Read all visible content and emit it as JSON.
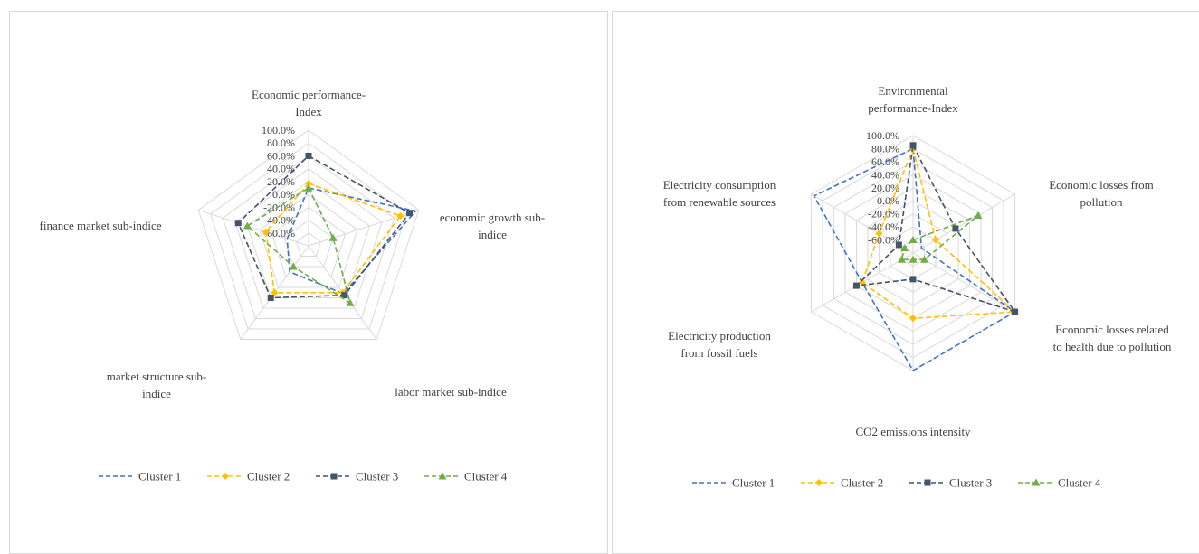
{
  "colors": {
    "cluster1": "#4472C4",
    "cluster2": "#FFC000",
    "cluster3": "#44546A",
    "cluster4": "#70AD47",
    "grid": "#D9D9D9"
  },
  "chart_data": [
    {
      "type": "radar",
      "title": "",
      "axes": [
        "Economic performance-Index",
        "economic growth sub-indice",
        "labor market sub-indice",
        "market structure sub-indice",
        "finance market sub-indice"
      ],
      "tick_labels": [
        "100.0%",
        "80.0%",
        "60.0%",
        "40.0%",
        "20.0%",
        "0.0%",
        "-20.0%",
        "-40.0%",
        "-60.0%"
      ],
      "range": [
        -80,
        100
      ],
      "unit": "%",
      "grid": true,
      "legend_position": "bottom",
      "series": [
        {
          "name": "Cluster 1",
          "marker": "none",
          "values": [
            10,
            95,
            12,
            -30,
            -45
          ]
        },
        {
          "name": "Cluster 2",
          "marker": "diamond",
          "values": [
            17,
            70,
            10,
            10,
            -10
          ]
        },
        {
          "name": "Cluster 3",
          "marker": "square",
          "values": [
            60,
            85,
            15,
            20,
            35
          ]
        },
        {
          "name": "Cluster 4",
          "marker": "triangle",
          "values": [
            10,
            -40,
            30,
            -40,
            20
          ]
        }
      ]
    },
    {
      "type": "radar",
      "title": "",
      "axes": [
        "Environmental performance-Index",
        "Economic losses from pollution",
        "Economic losses related to health due to pollution",
        "CO2 emissions intensity",
        "Electricity production from fossil fuels",
        "Electricity consumption from renewable sources"
      ],
      "tick_labels": [
        "100.0%",
        "80.0%",
        "60.0%",
        "40.0%",
        "20.0%",
        "0.0%",
        "-20.0%",
        "-40.0%",
        "-60.0%"
      ],
      "range": [
        -80,
        100
      ],
      "unit": "%",
      "grid": true,
      "legend_position": "bottom",
      "series": [
        {
          "name": "Cluster 1",
          "marker": "none",
          "values": [
            80,
            -65,
            100,
            100,
            10,
            95
          ]
        },
        {
          "name": "Cluster 2",
          "marker": "diamond",
          "values": [
            80,
            -40,
            100,
            20,
            10,
            -20
          ]
        },
        {
          "name": "Cluster 3",
          "marker": "square",
          "values": [
            85,
            -5,
            100,
            -40,
            20,
            -55
          ]
        },
        {
          "name": "Cluster 4",
          "marker": "triangle",
          "values": [
            -60,
            35,
            -60,
            -70,
            -60,
            -65
          ]
        }
      ]
    }
  ]
}
